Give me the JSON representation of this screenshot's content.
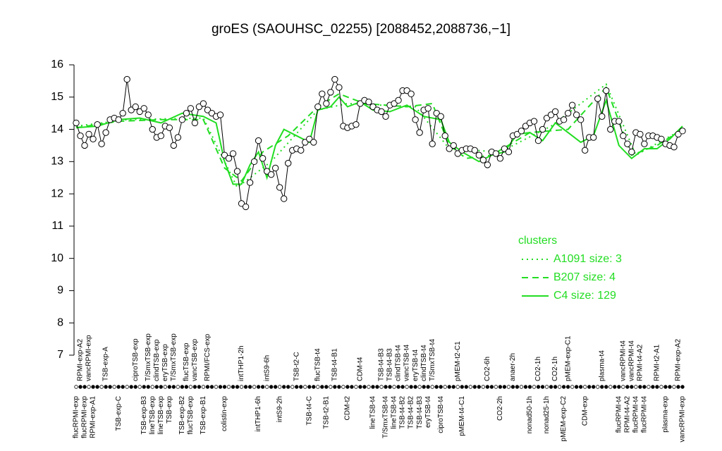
{
  "chart_data": {
    "type": "line",
    "title": "groES (SAOUHSC_02255) [2088452,2088736,−1]",
    "categories": [
      "flucRPMI-exp",
      "RPMI-exp-A2",
      "flucRPMI-exp",
      "vancRPMI-exp",
      "RPMI-exp-A1",
      null,
      null,
      "TSB-exp-A",
      null,
      null,
      "TSB-exp-C",
      null,
      null,
      null,
      "ciproTSB-exp",
      null,
      "TSB-exp-B3",
      "T/SmxTSB-exp",
      "lineTSB-exp",
      "clindTSB-exp",
      "lineTSB-exp",
      "eryTSB-exp",
      "TSB-exp",
      "T/SmxTSB-exp",
      null,
      "TSB-exp-B2",
      "flucTSB-exp",
      "flucTSB-exp",
      "vancTSB-exp",
      null,
      "TSB-exp-B1",
      "RPMI/FCS-exp",
      null,
      null,
      null,
      "colistin-exp",
      null,
      null,
      null,
      "intTHP1-2h",
      null,
      null,
      null,
      "intTHP1-6h",
      null,
      "intS9-6h",
      null,
      null,
      "intS9-2h",
      null,
      null,
      null,
      "TSB-t2-C",
      null,
      null,
      "TSB-t4-C",
      null,
      "flucTSB-t4",
      null,
      "TSB-t2-B1",
      null,
      "TSB-t4-B1",
      null,
      null,
      "CDM-t2",
      null,
      null,
      "CDM-t4",
      null,
      null,
      "lineTSB-t4",
      null,
      "TSB-t4-B3",
      "T/SmxTSB-t4",
      "TSB-t4-B3",
      "lineTSB-t4",
      "clindTSB-t4",
      "TSB-t4-B2",
      "vancTSB-t4",
      "TSB-t4-B2",
      "eryTSB-t4",
      "TSB-t4-B3",
      "clindTSB-t4",
      "eryTSB-t4",
      "T/SmxTSB-t4",
      null,
      "ciproTSB-t4",
      null,
      null,
      null,
      "pMEM-t2-C1",
      "pMEM-t4-C1",
      null,
      null,
      null,
      null,
      null,
      "CO2-6h",
      null,
      null,
      "CO2-2h",
      null,
      null,
      "anaer-2h",
      null,
      null,
      null,
      "nonad50-1h",
      null,
      "CO2-1h",
      null,
      "nonad25-1h",
      null,
      "CO2-1h",
      null,
      "pMEM-exp-C2",
      "pMEM-exp-C1",
      null,
      null,
      null,
      "CDM-exp",
      null,
      null,
      null,
      "plasma-t4",
      null,
      null,
      null,
      "flucRPMI-t4",
      "vancRPMI-t4",
      "RPMI-t4-A2",
      "vancRPMI-t4",
      "flucRPMI-t4",
      "RPMI-t4-A2",
      "flucRPMI-t4",
      null,
      null,
      "RPMI-t2-A1",
      null,
      "plasma-exp",
      null,
      null,
      "RPMI-exp-A2",
      "vancRPMI-exp"
    ],
    "values": [
      14.2,
      13.8,
      13.5,
      13.85,
      13.7,
      14.15,
      13.55,
      13.9,
      14.3,
      14.35,
      14.3,
      14.5,
      15.55,
      14.6,
      14.7,
      14.55,
      14.65,
      14.45,
      14.0,
      13.75,
      13.8,
      14.1,
      14.05,
      13.5,
      13.75,
      14.3,
      14.5,
      14.65,
      14.2,
      14.7,
      14.8,
      14.6,
      14.5,
      14.4,
      14.45,
      13.2,
      13.1,
      13.25,
      12.7,
      11.7,
      11.6,
      12.35,
      13.0,
      13.65,
      13.1,
      12.7,
      12.6,
      12.8,
      12.2,
      11.85,
      12.95,
      13.35,
      13.4,
      13.35,
      13.6,
      13.7,
      13.6,
      14.7,
      15.1,
      14.8,
      15.15,
      15.55,
      15.3,
      14.1,
      14.05,
      14.1,
      14.15,
      14.8,
      14.9,
      14.85,
      14.7,
      14.6,
      14.55,
      14.4,
      14.75,
      14.8,
      14.9,
      15.2,
      15.2,
      15.1,
      14.3,
      13.9,
      14.6,
      14.65,
      13.55,
      14.5,
      14.4,
      13.8,
      13.4,
      13.5,
      13.25,
      13.35,
      13.4,
      13.4,
      13.35,
      13.2,
      13.05,
      12.9,
      13.3,
      13.25,
      13.1,
      13.4,
      13.3,
      13.8,
      13.85,
      13.95,
      14.1,
      14.2,
      14.25,
      13.65,
      14.0,
      14.35,
      14.45,
      14.55,
      14.25,
      14.3,
      14.5,
      14.75,
      14.45,
      14.3,
      13.35,
      13.75,
      13.75,
      14.95,
      14.4,
      15.2,
      14.0,
      14.25,
      14.25,
      13.8,
      13.55,
      13.3,
      13.9,
      13.85,
      13.55,
      13.8,
      13.8,
      13.75,
      13.7,
      13.55,
      13.5,
      13.45,
      13.85,
      13.95
    ],
    "series": [
      {
        "name": "A1091 size: 3",
        "color": "#22dd22",
        "style": "dotted",
        "x": [
          0,
          12,
          30,
          38,
          46,
          57,
          64,
          80,
          88,
          100,
          112,
          125,
          132,
          143
        ],
        "values": [
          14.1,
          14.3,
          14.35,
          12.2,
          13.0,
          14.6,
          14.8,
          14.7,
          13.4,
          13.3,
          14.1,
          15.4,
          13.2,
          14.0
        ]
      },
      {
        "name": "B207 size: 4",
        "color": "#22dd22",
        "style": "dashed",
        "x": [
          0,
          10,
          20,
          30,
          35,
          39,
          44,
          50,
          57,
          62,
          68,
          78,
          84,
          88,
          92,
          98,
          107,
          116,
          125,
          131,
          137,
          143
        ],
        "values": [
          14.05,
          14.25,
          14.3,
          14.3,
          12.8,
          12.4,
          13.3,
          13.8,
          14.7,
          15.1,
          14.8,
          14.7,
          14.8,
          13.5,
          13.1,
          13.2,
          13.9,
          14.0,
          15.3,
          13.2,
          13.5,
          14.0
        ]
      },
      {
        "name": "C4 size: 129",
        "color": "#22dd22",
        "style": "solid",
        "x": [
          0,
          5,
          10,
          15,
          20,
          25,
          30,
          33,
          35,
          37,
          39,
          41,
          43,
          45,
          47,
          49,
          52,
          55,
          57,
          60,
          62,
          64,
          67,
          70,
          74,
          78,
          82,
          86,
          88,
          91,
          95,
          98,
          101,
          104,
          107,
          110,
          113,
          116,
          119,
          122,
          125,
          128,
          131,
          134,
          137,
          140,
          143
        ],
        "values": [
          14.05,
          14.1,
          14.3,
          14.35,
          14.2,
          14.5,
          14.4,
          14.2,
          13.0,
          12.3,
          12.3,
          12.9,
          13.3,
          12.5,
          13.5,
          14.0,
          13.8,
          13.6,
          14.6,
          14.7,
          15.0,
          14.7,
          14.85,
          14.6,
          14.55,
          14.75,
          14.4,
          14.3,
          13.6,
          13.3,
          13.0,
          13.2,
          13.3,
          13.85,
          13.9,
          13.65,
          14.2,
          13.9,
          13.6,
          13.8,
          14.9,
          13.5,
          13.1,
          13.4,
          13.4,
          13.7,
          14.1
        ]
      }
    ],
    "legend_title": "clusters",
    "ylim": [
      7,
      16
    ],
    "yticks": [
      7,
      8,
      9,
      10,
      11,
      12,
      13,
      14,
      15,
      16
    ]
  }
}
